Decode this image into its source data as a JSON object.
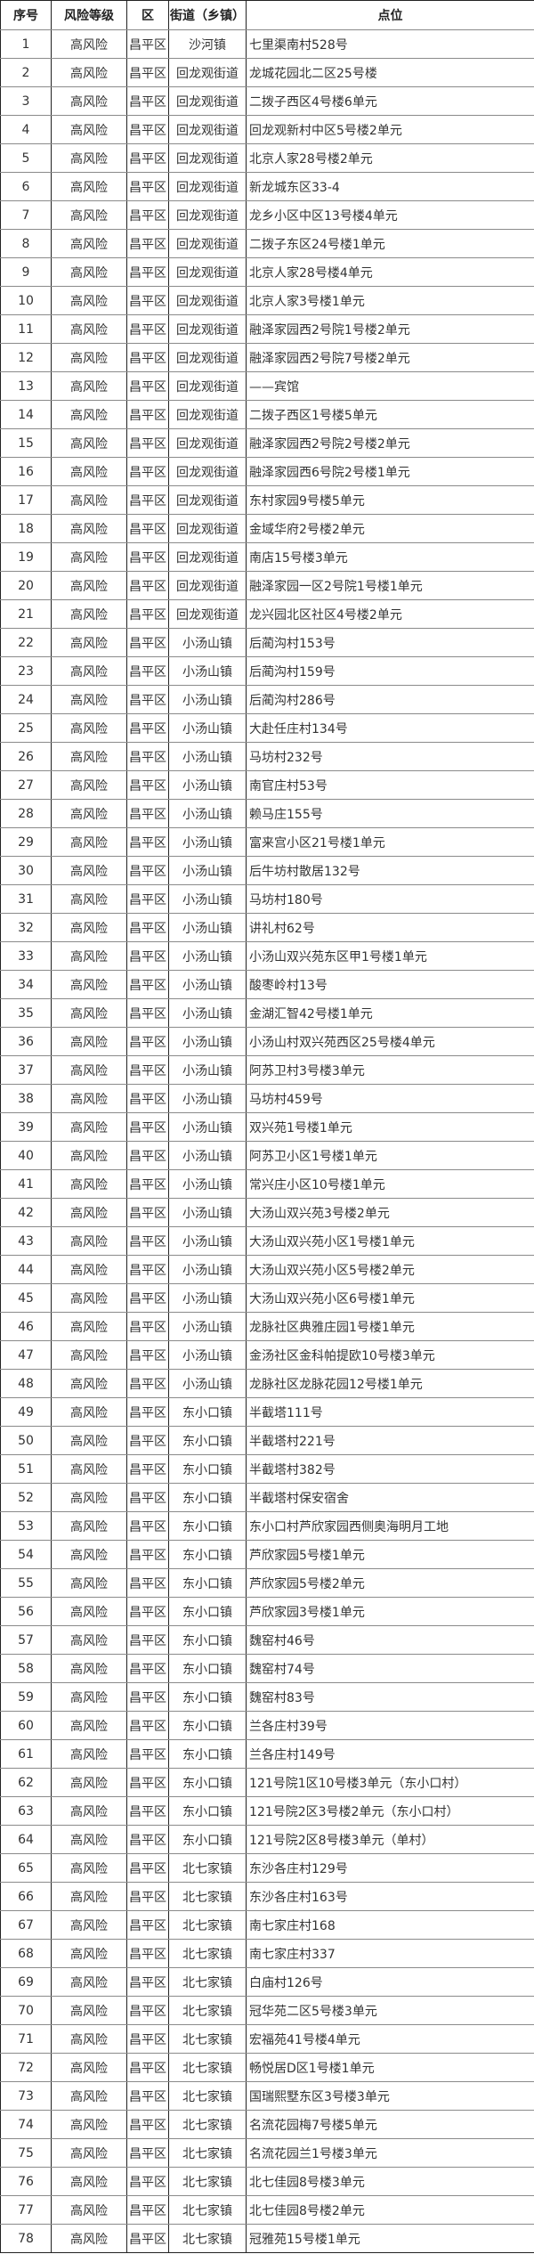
{
  "headers": [
    "序号",
    "风险等级",
    "区",
    "街道（乡镇）",
    "点位"
  ],
  "rows": [
    {
      "no": "1",
      "level": "高风险",
      "district": "昌平区",
      "street": "沙河镇",
      "location": "七里渠南村528号"
    },
    {
      "no": "2",
      "level": "高风险",
      "district": "昌平区",
      "street": "回龙观街道",
      "location": "龙城花园北二区25号楼"
    },
    {
      "no": "3",
      "level": "高风险",
      "district": "昌平区",
      "street": "回龙观街道",
      "location": "二拨子西区4号楼6单元"
    },
    {
      "no": "4",
      "level": "高风险",
      "district": "昌平区",
      "street": "回龙观街道",
      "location": "回龙观新村中区5号楼2单元"
    },
    {
      "no": "5",
      "level": "高风险",
      "district": "昌平区",
      "street": "回龙观街道",
      "location": "北京人家28号楼2单元"
    },
    {
      "no": "6",
      "level": "高风险",
      "district": "昌平区",
      "street": "回龙观街道",
      "location": "新龙城东区33-4"
    },
    {
      "no": "7",
      "level": "高风险",
      "district": "昌平区",
      "street": "回龙观街道",
      "location": "龙乡小区中区13号楼4单元"
    },
    {
      "no": "8",
      "level": "高风险",
      "district": "昌平区",
      "street": "回龙观街道",
      "location": "二拨子东区24号楼1单元"
    },
    {
      "no": "9",
      "level": "高风险",
      "district": "昌平区",
      "street": "回龙观街道",
      "location": "北京人家28号楼4单元"
    },
    {
      "no": "10",
      "level": "高风险",
      "district": "昌平区",
      "street": "回龙观街道",
      "location": "北京人家3号楼1单元"
    },
    {
      "no": "11",
      "level": "高风险",
      "district": "昌平区",
      "street": "回龙观街道",
      "location": "融泽家园西2号院1号楼2单元"
    },
    {
      "no": "12",
      "level": "高风险",
      "district": "昌平区",
      "street": "回龙观街道",
      "location": "融泽家园西2号院7号楼2单元"
    },
    {
      "no": "13",
      "level": "高风险",
      "district": "昌平区",
      "street": "回龙观街道",
      "location": "——宾馆"
    },
    {
      "no": "14",
      "level": "高风险",
      "district": "昌平区",
      "street": "回龙观街道",
      "location": "二拨子西区1号楼5单元"
    },
    {
      "no": "15",
      "level": "高风险",
      "district": "昌平区",
      "street": "回龙观街道",
      "location": "融泽家园西2号院2号楼2单元"
    },
    {
      "no": "16",
      "level": "高风险",
      "district": "昌平区",
      "street": "回龙观街道",
      "location": "融泽家园西6号院2号楼1单元"
    },
    {
      "no": "17",
      "level": "高风险",
      "district": "昌平区",
      "street": "回龙观街道",
      "location": "东村家园9号楼5单元"
    },
    {
      "no": "18",
      "level": "高风险",
      "district": "昌平区",
      "street": "回龙观街道",
      "location": "金域华府2号楼2单元"
    },
    {
      "no": "19",
      "level": "高风险",
      "district": "昌平区",
      "street": "回龙观街道",
      "location": "南店15号楼3单元"
    },
    {
      "no": "20",
      "level": "高风险",
      "district": "昌平区",
      "street": "回龙观街道",
      "location": "融泽家园一区2号院1号楼1单元"
    },
    {
      "no": "21",
      "level": "高风险",
      "district": "昌平区",
      "street": "回龙观街道",
      "location": "龙兴园北区社区4号楼2单元"
    },
    {
      "no": "22",
      "level": "高风险",
      "district": "昌平区",
      "street": "小汤山镇",
      "location": "后蔺沟村153号"
    },
    {
      "no": "23",
      "level": "高风险",
      "district": "昌平区",
      "street": "小汤山镇",
      "location": "后蔺沟村159号"
    },
    {
      "no": "24",
      "level": "高风险",
      "district": "昌平区",
      "street": "小汤山镇",
      "location": "后蔺沟村286号"
    },
    {
      "no": "25",
      "level": "高风险",
      "district": "昌平区",
      "street": "小汤山镇",
      "location": "大赴任庄村134号"
    },
    {
      "no": "26",
      "level": "高风险",
      "district": "昌平区",
      "street": "小汤山镇",
      "location": "马坊村232号"
    },
    {
      "no": "27",
      "level": "高风险",
      "district": "昌平区",
      "street": "小汤山镇",
      "location": "南官庄村53号"
    },
    {
      "no": "28",
      "level": "高风险",
      "district": "昌平区",
      "street": "小汤山镇",
      "location": "赖马庄155号"
    },
    {
      "no": "29",
      "level": "高风险",
      "district": "昌平区",
      "street": "小汤山镇",
      "location": "富来宫小区21号楼1单元"
    },
    {
      "no": "30",
      "level": "高风险",
      "district": "昌平区",
      "street": "小汤山镇",
      "location": "后牛坊村散居132号"
    },
    {
      "no": "31",
      "level": "高风险",
      "district": "昌平区",
      "street": "小汤山镇",
      "location": "马坊村180号"
    },
    {
      "no": "32",
      "level": "高风险",
      "district": "昌平区",
      "street": "小汤山镇",
      "location": "讲礼村62号"
    },
    {
      "no": "33",
      "level": "高风险",
      "district": "昌平区",
      "street": "小汤山镇",
      "location": "小汤山双兴苑东区甲1号楼1单元"
    },
    {
      "no": "34",
      "level": "高风险",
      "district": "昌平区",
      "street": "小汤山镇",
      "location": "酸枣岭村13号"
    },
    {
      "no": "35",
      "level": "高风险",
      "district": "昌平区",
      "street": "小汤山镇",
      "location": "金湖汇智42号楼1单元"
    },
    {
      "no": "36",
      "level": "高风险",
      "district": "昌平区",
      "street": "小汤山镇",
      "location": "小汤山村双兴苑西区25号楼4单元"
    },
    {
      "no": "37",
      "level": "高风险",
      "district": "昌平区",
      "street": "小汤山镇",
      "location": "阿苏卫村3号楼3单元"
    },
    {
      "no": "38",
      "level": "高风险",
      "district": "昌平区",
      "street": "小汤山镇",
      "location": "马坊村459号"
    },
    {
      "no": "39",
      "level": "高风险",
      "district": "昌平区",
      "street": "小汤山镇",
      "location": "双兴苑1号楼1单元"
    },
    {
      "no": "40",
      "level": "高风险",
      "district": "昌平区",
      "street": "小汤山镇",
      "location": "阿苏卫小区1号楼1单元"
    },
    {
      "no": "41",
      "level": "高风险",
      "district": "昌平区",
      "street": "小汤山镇",
      "location": "常兴庄小区10号楼1单元"
    },
    {
      "no": "42",
      "level": "高风险",
      "district": "昌平区",
      "street": "小汤山镇",
      "location": "大汤山双兴苑3号楼2单元"
    },
    {
      "no": "43",
      "level": "高风险",
      "district": "昌平区",
      "street": "小汤山镇",
      "location": "大汤山双兴苑小区1号楼1单元"
    },
    {
      "no": "44",
      "level": "高风险",
      "district": "昌平区",
      "street": "小汤山镇",
      "location": "大汤山双兴苑小区5号楼2单元"
    },
    {
      "no": "45",
      "level": "高风险",
      "district": "昌平区",
      "street": "小汤山镇",
      "location": "大汤山双兴苑小区6号楼1单元"
    },
    {
      "no": "46",
      "level": "高风险",
      "district": "昌平区",
      "street": "小汤山镇",
      "location": "龙脉社区典雅庄园1号楼1单元"
    },
    {
      "no": "47",
      "level": "高风险",
      "district": "昌平区",
      "street": "小汤山镇",
      "location": "金汤社区金科帕提欧10号楼3单元"
    },
    {
      "no": "48",
      "level": "高风险",
      "district": "昌平区",
      "street": "小汤山镇",
      "location": "龙脉社区龙脉花园12号楼1单元"
    },
    {
      "no": "49",
      "level": "高风险",
      "district": "昌平区",
      "street": "东小口镇",
      "location": "半截塔111号"
    },
    {
      "no": "50",
      "level": "高风险",
      "district": "昌平区",
      "street": "东小口镇",
      "location": "半截塔村221号"
    },
    {
      "no": "51",
      "level": "高风险",
      "district": "昌平区",
      "street": "东小口镇",
      "location": "半截塔村382号"
    },
    {
      "no": "52",
      "level": "高风险",
      "district": "昌平区",
      "street": "东小口镇",
      "location": "半截塔村保安宿舍"
    },
    {
      "no": "53",
      "level": "高风险",
      "district": "昌平区",
      "street": "东小口镇",
      "location": "东小口村芦欣家园西侧奥海明月工地"
    },
    {
      "no": "54",
      "level": "高风险",
      "district": "昌平区",
      "street": "东小口镇",
      "location": "芦欣家园5号楼1单元"
    },
    {
      "no": "55",
      "level": "高风险",
      "district": "昌平区",
      "street": "东小口镇",
      "location": "芦欣家园5号楼2单元"
    },
    {
      "no": "56",
      "level": "高风险",
      "district": "昌平区",
      "street": "东小口镇",
      "location": "芦欣家园3号楼1单元"
    },
    {
      "no": "57",
      "level": "高风险",
      "district": "昌平区",
      "street": "东小口镇",
      "location": "魏窑村46号"
    },
    {
      "no": "58",
      "level": "高风险",
      "district": "昌平区",
      "street": "东小口镇",
      "location": "魏窑村74号"
    },
    {
      "no": "59",
      "level": "高风险",
      "district": "昌平区",
      "street": "东小口镇",
      "location": "魏窑村83号"
    },
    {
      "no": "60",
      "level": "高风险",
      "district": "昌平区",
      "street": "东小口镇",
      "location": "兰各庄村39号"
    },
    {
      "no": "61",
      "level": "高风险",
      "district": "昌平区",
      "street": "东小口镇",
      "location": "兰各庄村149号"
    },
    {
      "no": "62",
      "level": "高风险",
      "district": "昌平区",
      "street": "东小口镇",
      "location": "121号院1区10号楼3单元（东小口村）"
    },
    {
      "no": "63",
      "level": "高风险",
      "district": "昌平区",
      "street": "东小口镇",
      "location": "121号院2区3号楼2单元（东小口村）"
    },
    {
      "no": "64",
      "level": "高风险",
      "district": "昌平区",
      "street": "东小口镇",
      "location": "121号院2区8号楼3单元（单村）"
    },
    {
      "no": "65",
      "level": "高风险",
      "district": "昌平区",
      "street": "北七家镇",
      "location": "东沙各庄村129号"
    },
    {
      "no": "66",
      "level": "高风险",
      "district": "昌平区",
      "street": "北七家镇",
      "location": "东沙各庄村163号"
    },
    {
      "no": "67",
      "level": "高风险",
      "district": "昌平区",
      "street": "北七家镇",
      "location": "南七家庄村168"
    },
    {
      "no": "68",
      "level": "高风险",
      "district": "昌平区",
      "street": "北七家镇",
      "location": "南七家庄村337"
    },
    {
      "no": "69",
      "level": "高风险",
      "district": "昌平区",
      "street": "北七家镇",
      "location": "白庙村126号"
    },
    {
      "no": "70",
      "level": "高风险",
      "district": "昌平区",
      "street": "北七家镇",
      "location": "冠华苑二区5号楼3单元"
    },
    {
      "no": "71",
      "level": "高风险",
      "district": "昌平区",
      "street": "北七家镇",
      "location": "宏福苑41号楼4单元"
    },
    {
      "no": "72",
      "level": "高风险",
      "district": "昌平区",
      "street": "北七家镇",
      "location": "畅悦居D区1号楼1单元"
    },
    {
      "no": "73",
      "level": "高风险",
      "district": "昌平区",
      "street": "北七家镇",
      "location": "国瑞熙墅东区3号楼3单元"
    },
    {
      "no": "74",
      "level": "高风险",
      "district": "昌平区",
      "street": "北七家镇",
      "location": "名流花园梅7号楼5单元"
    },
    {
      "no": "75",
      "level": "高风险",
      "district": "昌平区",
      "street": "北七家镇",
      "location": "名流花园兰1号楼3单元"
    },
    {
      "no": "76",
      "level": "高风险",
      "district": "昌平区",
      "street": "北七家镇",
      "location": "北七佳园8号楼3单元"
    },
    {
      "no": "77",
      "level": "高风险",
      "district": "昌平区",
      "street": "北七家镇",
      "location": "北七佳园8号楼2单元"
    },
    {
      "no": "78",
      "level": "高风险",
      "district": "昌平区",
      "street": "北七家镇",
      "location": "冠雅苑15号楼1单元"
    }
  ]
}
